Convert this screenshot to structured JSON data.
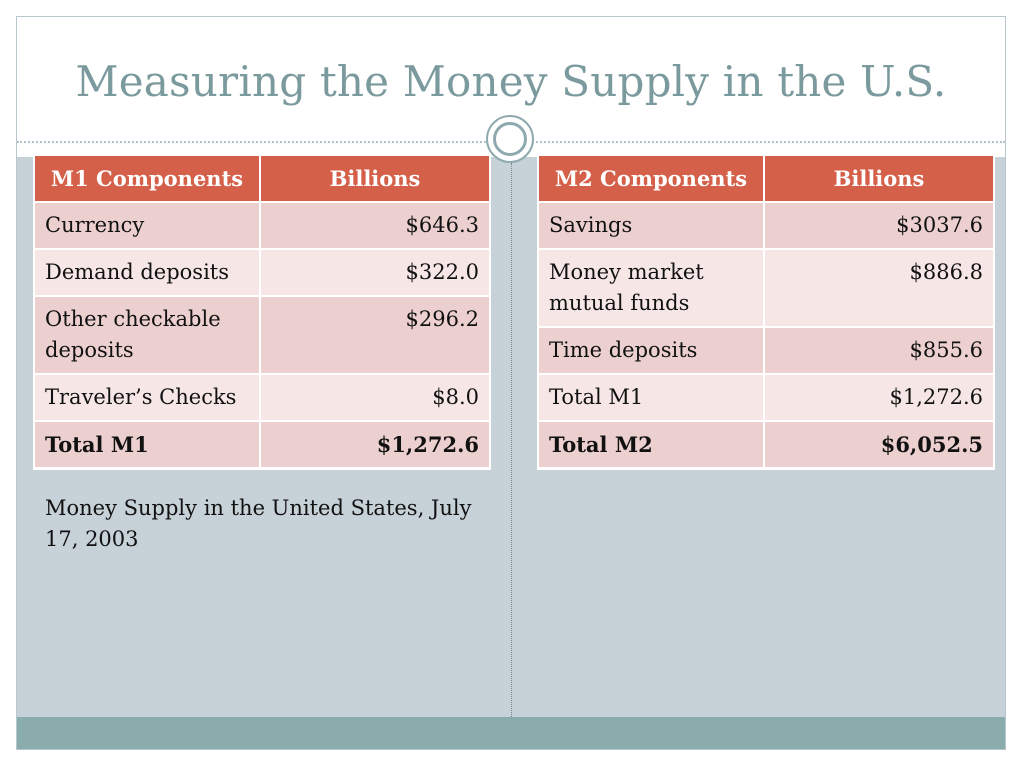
{
  "slide": {
    "title": "Measuring the Money Supply in the U.S."
  },
  "m1_table": {
    "headers": [
      "M1 Components",
      "Billions"
    ],
    "rows": [
      [
        "Currency",
        "$646.3"
      ],
      [
        "Demand deposits",
        "$322.0"
      ],
      [
        "Other checkable deposits",
        "$296.2"
      ],
      [
        "Traveler’s Checks",
        "$8.0"
      ],
      [
        "Total M1",
        "$1,272.6"
      ]
    ]
  },
  "m2_table": {
    "headers": [
      "M2 Components",
      "Billions"
    ],
    "rows": [
      [
        "Savings",
        "$3037.6"
      ],
      [
        "Money market mutual funds",
        "$886.8"
      ],
      [
        "Time deposits",
        "$855.6"
      ],
      [
        "Total M1",
        "$1,272.6"
      ],
      [
        "Total M2",
        "$6,052.5"
      ]
    ]
  },
  "caption": "Money Supply in the United States, July 17, 2003",
  "colors": {
    "header_fill": "#d5604a",
    "row_odd": "#ecd0cf",
    "row_even": "#f6e7e6",
    "title_text": "#7a9a9d",
    "background": "#c6d1d8",
    "footer_bar": "#8aacac"
  }
}
